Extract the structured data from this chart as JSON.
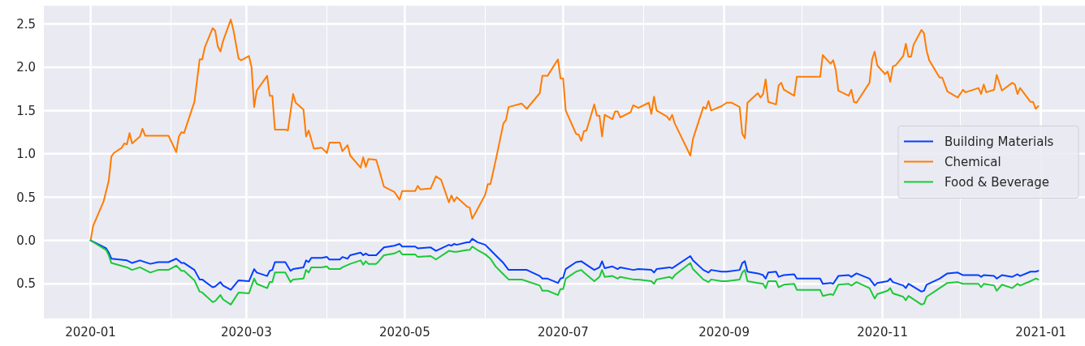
{
  "chart_data": {
    "type": "line",
    "xlim": [
      "2019-12-14",
      "2021-01-18"
    ],
    "ylim": [
      -0.9,
      2.71
    ],
    "xticks": [
      {
        "value": "2020-01",
        "label": "2020-01"
      },
      {
        "value": "2020-02",
        "label": null
      },
      {
        "value": "2020-03",
        "label": "2020-03"
      },
      {
        "value": "2020-04",
        "label": null
      },
      {
        "value": "2020-05",
        "label": "2020-05"
      },
      {
        "value": "2020-06",
        "label": null
      },
      {
        "value": "2020-07",
        "label": "2020-07"
      },
      {
        "value": "2020-08",
        "label": null
      },
      {
        "value": "2020-09",
        "label": "2020-09"
      },
      {
        "value": "2020-10",
        "label": null
      },
      {
        "value": "2020-11",
        "label": "2020-11"
      },
      {
        "value": "2020-12",
        "label": null
      },
      {
        "value": "2021-01",
        "label": "2021-01"
      }
    ],
    "yticks": [
      {
        "value": -0.5,
        "label": "0.5"
      },
      {
        "value": 0,
        "label": "0.0"
      },
      0.5,
      {
        "value": 1,
        "label": "1.0"
      },
      1.5,
      {
        "value": 2,
        "label": "2.0"
      },
      2.5
    ],
    "grid": true,
    "legend": "right",
    "line_style": "solid",
    "marker": "none",
    "series": [
      {
        "name": "Building Materials",
        "color": "#023eff",
        "x": [
          "2020-01-01",
          "2020-01-07",
          "2020-01-08",
          "2020-01-09",
          "2020-01-15",
          "2020-01-17",
          "2020-01-20",
          "2020-01-24",
          "2020-01-27",
          "2020-01-31",
          "2020-02-03",
          "2020-02-05",
          "2020-02-06",
          "2020-02-10",
          "2020-02-12",
          "2020-02-13",
          "2020-02-17",
          "2020-02-18",
          "2020-02-20",
          "2020-02-21",
          "2020-02-24",
          "2020-02-27",
          "2020-03-02",
          "2020-03-04",
          "2020-03-05",
          "2020-03-09",
          "2020-03-10",
          "2020-03-11",
          "2020-03-12",
          "2020-03-16",
          "2020-03-18",
          "2020-03-19",
          "2020-03-23",
          "2020-03-24",
          "2020-03-25",
          "2020-03-26",
          "2020-03-30",
          "2020-04-01",
          "2020-04-02",
          "2020-04-06",
          "2020-04-07",
          "2020-04-09",
          "2020-04-10",
          "2020-04-14",
          "2020-04-15",
          "2020-04-16",
          "2020-04-17",
          "2020-04-20",
          "2020-04-21",
          "2020-04-23",
          "2020-04-27",
          "2020-04-29",
          "2020-04-30",
          "2020-05-05",
          "2020-05-06",
          "2020-05-11",
          "2020-05-13",
          "2020-05-18",
          "2020-05-19",
          "2020-05-20",
          "2020-05-21",
          "2020-05-25",
          "2020-05-26",
          "2020-05-27",
          "2020-05-29",
          "2020-06-01",
          "2020-06-03",
          "2020-06-05",
          "2020-06-08",
          "2020-06-10",
          "2020-06-15",
          "2020-06-17",
          "2020-06-22",
          "2020-06-23",
          "2020-06-25",
          "2020-06-29",
          "2020-06-30",
          "2020-07-01",
          "2020-07-02",
          "2020-07-06",
          "2020-07-08",
          "2020-07-09",
          "2020-07-13",
          "2020-07-15",
          "2020-07-16",
          "2020-07-17",
          "2020-07-20",
          "2020-07-22",
          "2020-07-23",
          "2020-07-28",
          "2020-07-30",
          "2020-08-04",
          "2020-08-05",
          "2020-08-06",
          "2020-08-11",
          "2020-08-12",
          "2020-08-13",
          "2020-08-19",
          "2020-08-20",
          "2020-08-24",
          "2020-08-26",
          "2020-08-27",
          "2020-08-31",
          "2020-09-02",
          "2020-09-07",
          "2020-09-08",
          "2020-09-09",
          "2020-09-10",
          "2020-09-14",
          "2020-09-16",
          "2020-09-17",
          "2020-09-18",
          "2020-09-21",
          "2020-09-22",
          "2020-09-24",
          "2020-09-28",
          "2020-09-29",
          "2020-10-08",
          "2020-10-09",
          "2020-10-12",
          "2020-10-13",
          "2020-10-15",
          "2020-10-19",
          "2020-10-20",
          "2020-10-22",
          "2020-10-27",
          "2020-10-29",
          "2020-10-30",
          "2020-11-03",
          "2020-11-04",
          "2020-11-05",
          "2020-11-09",
          "2020-11-10",
          "2020-11-11",
          "2020-11-16",
          "2020-11-17",
          "2020-11-18",
          "2020-11-23",
          "2020-11-26",
          "2020-11-30",
          "2020-12-02",
          "2020-12-08",
          "2020-12-09",
          "2020-12-10",
          "2020-12-14",
          "2020-12-15",
          "2020-12-17",
          "2020-12-21",
          "2020-12-23",
          "2020-12-24",
          "2020-12-28",
          "2020-12-30",
          "2020-12-31"
        ],
        "values": [
          0,
          -0.09,
          -0.14,
          -0.21,
          -0.23,
          -0.26,
          -0.23,
          -0.27,
          -0.25,
          -0.25,
          -0.21,
          -0.26,
          -0.26,
          -0.34,
          -0.45,
          -0.45,
          -0.54,
          -0.53,
          -0.48,
          -0.52,
          -0.57,
          -0.46,
          -0.47,
          -0.33,
          -0.37,
          -0.41,
          -0.35,
          -0.34,
          -0.25,
          -0.25,
          -0.35,
          -0.33,
          -0.31,
          -0.23,
          -0.25,
          -0.2,
          -0.2,
          -0.19,
          -0.22,
          -0.22,
          -0.19,
          -0.21,
          -0.17,
          -0.14,
          -0.17,
          -0.15,
          -0.17,
          -0.17,
          -0.14,
          -0.08,
          -0.06,
          -0.04,
          -0.07,
          -0.07,
          -0.09,
          -0.08,
          -0.12,
          -0.05,
          -0.06,
          -0.04,
          -0.05,
          -0.02,
          -0.02,
          0.02,
          -0.02,
          -0.05,
          -0.11,
          -0.17,
          -0.26,
          -0.34,
          -0.34,
          -0.34,
          -0.41,
          -0.44,
          -0.44,
          -0.49,
          -0.44,
          -0.43,
          -0.33,
          -0.25,
          -0.24,
          -0.26,
          -0.34,
          -0.31,
          -0.24,
          -0.32,
          -0.3,
          -0.33,
          -0.31,
          -0.34,
          -0.33,
          -0.34,
          -0.37,
          -0.33,
          -0.31,
          -0.32,
          -0.3,
          -0.18,
          -0.23,
          -0.34,
          -0.37,
          -0.34,
          -0.36,
          -0.36,
          -0.34,
          -0.26,
          -0.24,
          -0.36,
          -0.38,
          -0.4,
          -0.44,
          -0.37,
          -0.36,
          -0.42,
          -0.4,
          -0.39,
          -0.44,
          -0.44,
          -0.5,
          -0.49,
          -0.5,
          -0.41,
          -0.4,
          -0.42,
          -0.38,
          -0.44,
          -0.52,
          -0.49,
          -0.47,
          -0.44,
          -0.48,
          -0.52,
          -0.55,
          -0.5,
          -0.59,
          -0.58,
          -0.51,
          -0.44,
          -0.38,
          -0.37,
          -0.4,
          -0.4,
          -0.42,
          -0.4,
          -0.41,
          -0.44,
          -0.4,
          -0.42,
          -0.39,
          -0.41,
          -0.36,
          -0.36,
          -0.35
        ]
      },
      {
        "name": "Chemical",
        "color": "#ff7c00",
        "x": [
          "2020-01-01",
          "2020-01-02",
          "2020-01-06",
          "2020-01-08",
          "2020-01-09",
          "2020-01-10",
          "2020-01-13",
          "2020-01-14",
          "2020-01-15",
          "2020-01-16",
          "2020-01-17",
          "2020-01-20",
          "2020-01-21",
          "2020-01-22",
          "2020-01-31",
          "2020-02-03",
          "2020-02-04",
          "2020-02-05",
          "2020-02-06",
          "2020-02-10",
          "2020-02-12",
          "2020-02-13",
          "2020-02-14",
          "2020-02-17",
          "2020-02-18",
          "2020-02-19",
          "2020-02-20",
          "2020-02-21",
          "2020-02-24",
          "2020-02-25",
          "2020-02-27",
          "2020-02-28",
          "2020-03-02",
          "2020-03-03",
          "2020-03-04",
          "2020-03-05",
          "2020-03-09",
          "2020-03-10",
          "2020-03-11",
          "2020-03-12",
          "2020-03-16",
          "2020-03-17",
          "2020-03-19",
          "2020-03-20",
          "2020-03-23",
          "2020-03-24",
          "2020-03-25",
          "2020-03-27",
          "2020-03-30",
          "2020-04-01",
          "2020-04-02",
          "2020-04-06",
          "2020-04-07",
          "2020-04-09",
          "2020-04-10",
          "2020-04-14",
          "2020-04-15",
          "2020-04-16",
          "2020-04-17",
          "2020-04-20",
          "2020-04-21",
          "2020-04-23",
          "2020-04-27",
          "2020-04-29",
          "2020-04-30",
          "2020-05-05",
          "2020-05-06",
          "2020-05-07",
          "2020-05-11",
          "2020-05-13",
          "2020-05-15",
          "2020-05-18",
          "2020-05-19",
          "2020-05-20",
          "2020-05-21",
          "2020-05-25",
          "2020-05-26",
          "2020-05-27",
          "2020-05-29",
          "2020-06-01",
          "2020-06-02",
          "2020-06-03",
          "2020-06-05",
          "2020-06-08",
          "2020-06-09",
          "2020-06-10",
          "2020-06-15",
          "2020-06-17",
          "2020-06-22",
          "2020-06-23",
          "2020-06-25",
          "2020-06-29",
          "2020-06-30",
          "2020-07-01",
          "2020-07-02",
          "2020-07-06",
          "2020-07-07",
          "2020-07-08",
          "2020-07-09",
          "2020-07-10",
          "2020-07-13",
          "2020-07-14",
          "2020-07-15",
          "2020-07-16",
          "2020-07-17",
          "2020-07-20",
          "2020-07-21",
          "2020-07-22",
          "2020-07-23",
          "2020-07-27",
          "2020-07-28",
          "2020-07-30",
          "2020-08-03",
          "2020-08-04",
          "2020-08-05",
          "2020-08-06",
          "2020-08-10",
          "2020-08-11",
          "2020-08-12",
          "2020-08-13",
          "2020-08-19",
          "2020-08-20",
          "2020-08-24",
          "2020-08-25",
          "2020-08-26",
          "2020-08-27",
          "2020-08-31",
          "2020-09-02",
          "2020-09-04",
          "2020-09-07",
          "2020-09-08",
          "2020-09-09",
          "2020-09-10",
          "2020-09-14",
          "2020-09-15",
          "2020-09-16",
          "2020-09-17",
          "2020-09-18",
          "2020-09-21",
          "2020-09-22",
          "2020-09-23",
          "2020-09-24",
          "2020-09-28",
          "2020-09-29",
          "2020-10-08",
          "2020-10-09",
          "2020-10-12",
          "2020-10-13",
          "2020-10-14",
          "2020-10-15",
          "2020-10-19",
          "2020-10-20",
          "2020-10-21",
          "2020-10-22",
          "2020-10-27",
          "2020-10-28",
          "2020-10-29",
          "2020-10-30",
          "2020-11-02",
          "2020-11-03",
          "2020-11-04",
          "2020-11-05",
          "2020-11-06",
          "2020-11-09",
          "2020-11-10",
          "2020-11-11",
          "2020-11-12",
          "2020-11-13",
          "2020-11-16",
          "2020-11-17",
          "2020-11-18",
          "2020-11-19",
          "2020-11-23",
          "2020-11-24",
          "2020-11-26",
          "2020-11-30",
          "2020-12-02",
          "2020-12-03",
          "2020-12-08",
          "2020-12-09",
          "2020-12-10",
          "2020-12-11",
          "2020-12-14",
          "2020-12-15",
          "2020-12-17",
          "2020-12-21",
          "2020-12-22",
          "2020-12-23",
          "2020-12-24",
          "2020-12-28",
          "2020-12-29",
          "2020-12-30",
          "2020-12-31"
        ],
        "values": [
          0,
          0.17,
          0.45,
          0.69,
          0.97,
          1.01,
          1.07,
          1.12,
          1.11,
          1.24,
          1.12,
          1.2,
          1.29,
          1.21,
          1.21,
          1.02,
          1.2,
          1.25,
          1.24,
          1.6,
          2.09,
          2.09,
          2.23,
          2.45,
          2.42,
          2.24,
          2.18,
          2.3,
          2.55,
          2.43,
          2.1,
          2.08,
          2.13,
          2.0,
          1.54,
          1.73,
          1.9,
          1.67,
          1.67,
          1.28,
          1.28,
          1.27,
          1.69,
          1.59,
          1.51,
          1.2,
          1.27,
          1.06,
          1.07,
          1.01,
          1.13,
          1.13,
          1.03,
          1.1,
          0.98,
          0.84,
          0.96,
          0.85,
          0.94,
          0.93,
          0.83,
          0.62,
          0.56,
          0.47,
          0.57,
          0.57,
          0.63,
          0.59,
          0.6,
          0.74,
          0.7,
          0.44,
          0.52,
          0.45,
          0.5,
          0.39,
          0.38,
          0.25,
          0.36,
          0.53,
          0.65,
          0.65,
          0.92,
          1.35,
          1.39,
          1.54,
          1.58,
          1.52,
          1.7,
          1.9,
          1.9,
          2.09,
          1.87,
          1.87,
          1.5,
          1.23,
          1.22,
          1.15,
          1.26,
          1.27,
          1.57,
          1.44,
          1.44,
          1.2,
          1.45,
          1.4,
          1.49,
          1.49,
          1.42,
          1.48,
          1.56,
          1.53,
          1.59,
          1.46,
          1.66,
          1.5,
          1.43,
          1.39,
          1.45,
          1.35,
          0.98,
          1.17,
          1.54,
          1.52,
          1.61,
          1.5,
          1.55,
          1.59,
          1.59,
          1.54,
          1.23,
          1.18,
          1.59,
          1.7,
          1.65,
          1.69,
          1.86,
          1.6,
          1.57,
          1.79,
          1.82,
          1.74,
          1.67,
          1.89,
          1.89,
          2.14,
          2.04,
          2.08,
          1.97,
          1.73,
          1.67,
          1.74,
          1.6,
          1.59,
          1.82,
          2.09,
          2.18,
          2.02,
          1.92,
          1.95,
          1.83,
          2.01,
          2.02,
          2.13,
          2.27,
          2.12,
          2.12,
          2.26,
          2.43,
          2.39,
          2.19,
          2.08,
          1.88,
          1.88,
          1.72,
          1.65,
          1.74,
          1.71,
          1.76,
          1.69,
          1.8,
          1.71,
          1.74,
          1.91,
          1.73,
          1.82,
          1.8,
          1.69,
          1.76,
          1.6,
          1.6,
          1.52,
          1.55
        ]
      },
      {
        "name": "Food & Beverage",
        "color": "#1ac938",
        "x": [
          "2020-01-01",
          "2020-01-07",
          "2020-01-08",
          "2020-01-09",
          "2020-01-15",
          "2020-01-17",
          "2020-01-20",
          "2020-01-24",
          "2020-01-27",
          "2020-01-31",
          "2020-02-03",
          "2020-02-05",
          "2020-02-06",
          "2020-02-10",
          "2020-02-12",
          "2020-02-13",
          "2020-02-17",
          "2020-02-18",
          "2020-02-20",
          "2020-02-21",
          "2020-02-24",
          "2020-02-27",
          "2020-03-02",
          "2020-03-04",
          "2020-03-05",
          "2020-03-09",
          "2020-03-10",
          "2020-03-11",
          "2020-03-12",
          "2020-03-16",
          "2020-03-18",
          "2020-03-19",
          "2020-03-23",
          "2020-03-24",
          "2020-03-25",
          "2020-03-26",
          "2020-03-30",
          "2020-04-01",
          "2020-04-02",
          "2020-04-06",
          "2020-04-07",
          "2020-04-10",
          "2020-04-14",
          "2020-04-15",
          "2020-04-16",
          "2020-04-17",
          "2020-04-20",
          "2020-04-21",
          "2020-04-23",
          "2020-04-27",
          "2020-04-29",
          "2020-04-30",
          "2020-05-05",
          "2020-05-06",
          "2020-05-11",
          "2020-05-13",
          "2020-05-18",
          "2020-05-20",
          "2020-05-21",
          "2020-05-25",
          "2020-05-26",
          "2020-05-27",
          "2020-05-29",
          "2020-06-01",
          "2020-06-03",
          "2020-06-05",
          "2020-06-08",
          "2020-06-10",
          "2020-06-15",
          "2020-06-17",
          "2020-06-22",
          "2020-06-23",
          "2020-06-25",
          "2020-06-29",
          "2020-06-30",
          "2020-07-01",
          "2020-07-02",
          "2020-07-06",
          "2020-07-08",
          "2020-07-09",
          "2020-07-13",
          "2020-07-15",
          "2020-07-16",
          "2020-07-17",
          "2020-07-20",
          "2020-07-22",
          "2020-07-23",
          "2020-07-28",
          "2020-07-30",
          "2020-08-04",
          "2020-08-05",
          "2020-08-06",
          "2020-08-11",
          "2020-08-12",
          "2020-08-13",
          "2020-08-19",
          "2020-08-20",
          "2020-08-24",
          "2020-08-26",
          "2020-08-27",
          "2020-08-31",
          "2020-09-02",
          "2020-09-07",
          "2020-09-08",
          "2020-09-09",
          "2020-09-10",
          "2020-09-14",
          "2020-09-16",
          "2020-09-17",
          "2020-09-18",
          "2020-09-21",
          "2020-09-22",
          "2020-09-24",
          "2020-09-28",
          "2020-09-29",
          "2020-10-08",
          "2020-10-09",
          "2020-10-12",
          "2020-10-13",
          "2020-10-15",
          "2020-10-19",
          "2020-10-20",
          "2020-10-22",
          "2020-10-27",
          "2020-10-29",
          "2020-10-30",
          "2020-11-03",
          "2020-11-04",
          "2020-11-05",
          "2020-11-09",
          "2020-11-10",
          "2020-11-11",
          "2020-11-16",
          "2020-11-17",
          "2020-11-18",
          "2020-11-23",
          "2020-11-26",
          "2020-11-30",
          "2020-12-02",
          "2020-12-08",
          "2020-12-09",
          "2020-12-10",
          "2020-12-14",
          "2020-12-15",
          "2020-12-17",
          "2020-12-21",
          "2020-12-23",
          "2020-12-24",
          "2020-12-28",
          "2020-12-30",
          "2020-12-31"
        ],
        "values": [
          0,
          -0.11,
          -0.17,
          -0.26,
          -0.31,
          -0.34,
          -0.31,
          -0.37,
          -0.34,
          -0.34,
          -0.29,
          -0.35,
          -0.35,
          -0.46,
          -0.59,
          -0.6,
          -0.71,
          -0.7,
          -0.63,
          -0.68,
          -0.74,
          -0.6,
          -0.61,
          -0.44,
          -0.5,
          -0.55,
          -0.48,
          -0.48,
          -0.37,
          -0.37,
          -0.48,
          -0.45,
          -0.44,
          -0.34,
          -0.37,
          -0.31,
          -0.31,
          -0.3,
          -0.33,
          -0.33,
          -0.31,
          -0.27,
          -0.23,
          -0.28,
          -0.24,
          -0.27,
          -0.27,
          -0.24,
          -0.17,
          -0.15,
          -0.12,
          -0.16,
          -0.16,
          -0.19,
          -0.18,
          -0.22,
          -0.12,
          -0.13,
          -0.13,
          -0.11,
          -0.11,
          -0.07,
          -0.11,
          -0.16,
          -0.21,
          -0.3,
          -0.39,
          -0.45,
          -0.45,
          -0.47,
          -0.52,
          -0.58,
          -0.58,
          -0.63,
          -0.56,
          -0.56,
          -0.44,
          -0.36,
          -0.34,
          -0.37,
          -0.47,
          -0.42,
          -0.34,
          -0.42,
          -0.41,
          -0.44,
          -0.42,
          -0.45,
          -0.45,
          -0.47,
          -0.5,
          -0.45,
          -0.42,
          -0.44,
          -0.4,
          -0.26,
          -0.33,
          -0.45,
          -0.48,
          -0.45,
          -0.47,
          -0.47,
          -0.45,
          -0.37,
          -0.34,
          -0.47,
          -0.49,
          -0.5,
          -0.55,
          -0.47,
          -0.47,
          -0.54,
          -0.51,
          -0.5,
          -0.57,
          -0.57,
          -0.64,
          -0.62,
          -0.63,
          -0.51,
          -0.5,
          -0.52,
          -0.48,
          -0.55,
          -0.67,
          -0.62,
          -0.58,
          -0.55,
          -0.61,
          -0.65,
          -0.69,
          -0.64,
          -0.74,
          -0.73,
          -0.65,
          -0.55,
          -0.49,
          -0.48,
          -0.5,
          -0.5,
          -0.54,
          -0.5,
          -0.52,
          -0.58,
          -0.51,
          -0.55,
          -0.5,
          -0.52,
          -0.47,
          -0.44,
          -0.45
        ]
      }
    ]
  }
}
